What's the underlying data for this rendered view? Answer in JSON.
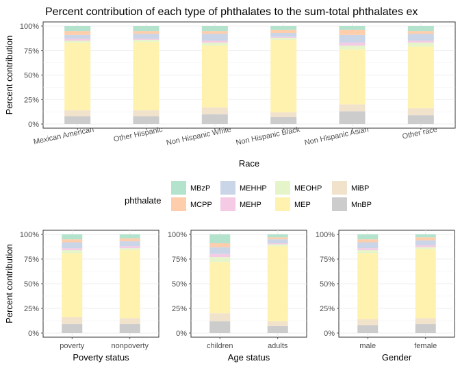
{
  "legend": {
    "title": "phthalate",
    "entries": [
      {
        "key": "MBzP",
        "color": "#B3E2CD"
      },
      {
        "key": "MCPP",
        "color": "#FDCDAC"
      },
      {
        "key": "MEHHP",
        "color": "#CBD5E8"
      },
      {
        "key": "MEHP",
        "color": "#F4CAE4"
      },
      {
        "key": "MEOHP",
        "color": "#E6F5C9"
      },
      {
        "key": "MEP",
        "color": "#FFF2AE"
      },
      {
        "key": "MiBP",
        "color": "#F1E2CC"
      },
      {
        "key": "MnBP",
        "color": "#CCCCCC"
      }
    ]
  },
  "chart_data": [
    {
      "id": "race",
      "type": "bar",
      "stacked": true,
      "title": "Percent contribution of each type of phthalates to the sum-total phthalates ex",
      "xlabel": "Race",
      "ylabel": "Percent contribution",
      "ylim": [
        0,
        100
      ],
      "yticks": [
        "0%",
        "25%",
        "50%",
        "75%",
        "100%"
      ],
      "grid": true,
      "categories": [
        "Mexican American",
        "Other Hispanic",
        "Non Hispanic White",
        "Non Hispanic Black",
        "Non Hispanic Asian",
        "Other race"
      ],
      "series": [
        {
          "name": "MnBP",
          "values": [
            8,
            8,
            10,
            7,
            13,
            9
          ]
        },
        {
          "name": "MiBP",
          "values": [
            6,
            6,
            7,
            5,
            7,
            7
          ]
        },
        {
          "name": "MEP",
          "values": [
            69,
            70,
            63,
            74,
            56,
            63
          ]
        },
        {
          "name": "MEOHP",
          "values": [
            2,
            2,
            3,
            2,
            4,
            4
          ]
        },
        {
          "name": "MEHP",
          "values": [
            2,
            1,
            2,
            1,
            3,
            2
          ]
        },
        {
          "name": "MEHHP",
          "values": [
            4,
            5,
            7,
            4,
            8,
            7
          ]
        },
        {
          "name": "MCPP",
          "values": [
            4,
            3,
            3,
            3,
            5,
            3
          ]
        },
        {
          "name": "MBzP",
          "values": [
            5,
            5,
            5,
            4,
            4,
            5
          ]
        }
      ]
    },
    {
      "id": "poverty",
      "type": "bar",
      "stacked": true,
      "xlabel": "Poverty status",
      "ylabel": "Percent contribution",
      "ylim": [
        0,
        100
      ],
      "yticks": [
        "0%",
        "25%",
        "50%",
        "75%",
        "100%"
      ],
      "grid": true,
      "categories": [
        "poverty",
        "nonpoverty"
      ],
      "series": [
        {
          "name": "MnBP",
          "values": [
            9,
            9
          ]
        },
        {
          "name": "MiBP",
          "values": [
            7,
            6
          ]
        },
        {
          "name": "MEP",
          "values": [
            65,
            69
          ]
        },
        {
          "name": "MEOHP",
          "values": [
            3,
            2
          ]
        },
        {
          "name": "MEHP",
          "values": [
            2,
            2
          ]
        },
        {
          "name": "MEHHP",
          "values": [
            6,
            5
          ]
        },
        {
          "name": "MCPP",
          "values": [
            3,
            3
          ]
        },
        {
          "name": "MBzP",
          "values": [
            5,
            4
          ]
        }
      ]
    },
    {
      "id": "age",
      "type": "bar",
      "stacked": true,
      "xlabel": "Age status",
      "ylabel": "",
      "ylim": [
        0,
        100
      ],
      "yticks": [
        "0%",
        "25%",
        "50%",
        "75%",
        "100%"
      ],
      "grid": true,
      "categories": [
        "children",
        "adults"
      ],
      "series": [
        {
          "name": "MnBP",
          "values": [
            12,
            7
          ]
        },
        {
          "name": "MiBP",
          "values": [
            8,
            5
          ]
        },
        {
          "name": "MEP",
          "values": [
            52,
            76
          ]
        },
        {
          "name": "MEOHP",
          "values": [
            5,
            2
          ]
        },
        {
          "name": "MEHP",
          "values": [
            3,
            1
          ]
        },
        {
          "name": "MEHHP",
          "values": [
            7,
            4
          ]
        },
        {
          "name": "MCPP",
          "values": [
            4,
            2
          ]
        },
        {
          "name": "MBzP",
          "values": [
            9,
            3
          ]
        }
      ]
    },
    {
      "id": "gender",
      "type": "bar",
      "stacked": true,
      "xlabel": "Gender",
      "ylabel": "",
      "ylim": [
        0,
        100
      ],
      "yticks": [
        "0%",
        "25%",
        "50%",
        "75%",
        "100%"
      ],
      "grid": true,
      "categories": [
        "male",
        "female"
      ],
      "series": [
        {
          "name": "MnBP",
          "values": [
            8,
            9
          ]
        },
        {
          "name": "MiBP",
          "values": [
            6,
            6
          ]
        },
        {
          "name": "MEP",
          "values": [
            67,
            70
          ]
        },
        {
          "name": "MEOHP",
          "values": [
            3,
            2
          ]
        },
        {
          "name": "MEHP",
          "values": [
            2,
            2
          ]
        },
        {
          "name": "MEHHP",
          "values": [
            6,
            5
          ]
        },
        {
          "name": "MCPP",
          "values": [
            3,
            3
          ]
        },
        {
          "name": "MBzP",
          "values": [
            5,
            3
          ]
        }
      ]
    }
  ]
}
